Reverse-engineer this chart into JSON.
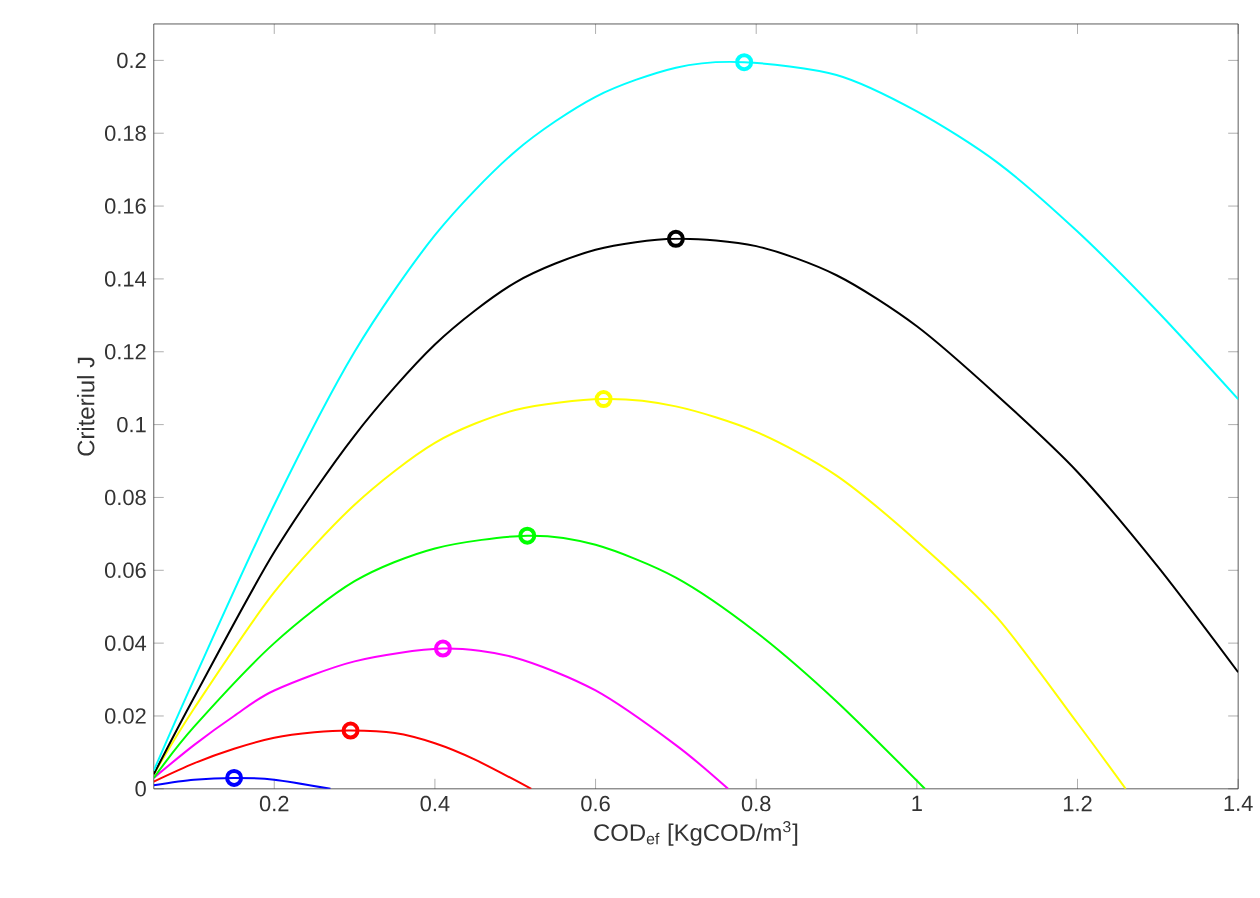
{
  "chart_data": {
    "type": "line",
    "xlabel": "COD$_{ef}$ [KgCOD/m$^{3}$]",
    "ylabel": "Criteriul J",
    "xlim": [
      0.05,
      1.4
    ],
    "ylim": [
      0,
      0.21
    ],
    "xticks": [
      0.2,
      0.4,
      0.6,
      0.8,
      1,
      1.2,
      1.4
    ],
    "yticks": [
      0,
      0.02,
      0.04,
      0.06,
      0.08,
      0.1,
      0.12,
      0.14,
      0.16,
      0.18,
      0.2
    ],
    "grid": false,
    "marker": "none",
    "line_style": "solid",
    "series": [
      {
        "color": "#0000ff",
        "x": [
          0.05,
          0.1,
          0.15,
          0.2,
          0.27
        ],
        "values": [
          0.001,
          0.0025,
          0.003,
          0.0025,
          0
        ]
      },
      {
        "color": "#ff0000",
        "x": [
          0.05,
          0.1,
          0.15,
          0.2,
          0.25,
          0.295,
          0.35,
          0.4,
          0.45,
          0.52
        ],
        "values": [
          0.002,
          0.007,
          0.011,
          0.014,
          0.0155,
          0.016,
          0.0153,
          0.0125,
          0.008,
          0
        ]
      },
      {
        "color": "#ff00ff",
        "x": [
          0.05,
          0.1,
          0.15,
          0.2,
          0.3,
          0.41,
          0.5,
          0.6,
          0.7,
          0.765
        ],
        "values": [
          0.003,
          0.012,
          0.02,
          0.027,
          0.035,
          0.0385,
          0.036,
          0.027,
          0.012,
          0
        ]
      },
      {
        "color": "#00ff00",
        "x": [
          0.05,
          0.1,
          0.2,
          0.3,
          0.4,
          0.515,
          0.6,
          0.7,
          0.8,
          0.9,
          1.01
        ],
        "values": [
          0.003,
          0.017,
          0.04,
          0.057,
          0.066,
          0.0695,
          0.067,
          0.058,
          0.043,
          0.024,
          0
        ]
      },
      {
        "color": "#ffff00",
        "x": [
          0.05,
          0.1,
          0.2,
          0.3,
          0.4,
          0.5,
          0.61,
          0.7,
          0.8,
          0.9,
          1.0,
          1.1,
          1.2,
          1.26
        ],
        "values": [
          0.004,
          0.022,
          0.054,
          0.078,
          0.095,
          0.104,
          0.107,
          0.105,
          0.098,
          0.086,
          0.068,
          0.047,
          0.018,
          0
        ]
      },
      {
        "color": "#000000",
        "x": [
          0.05,
          0.1,
          0.2,
          0.3,
          0.4,
          0.5,
          0.6,
          0.7,
          0.8,
          0.9,
          1.0,
          1.1,
          1.2,
          1.3,
          1.4
        ],
        "values": [
          0.004,
          0.025,
          0.065,
          0.097,
          0.122,
          0.139,
          0.148,
          0.151,
          0.149,
          0.141,
          0.127,
          0.108,
          0.087,
          0.061,
          0.032
        ]
      },
      {
        "color": "#00ffff",
        "x": [
          0.05,
          0.1,
          0.2,
          0.3,
          0.4,
          0.5,
          0.6,
          0.7,
          0.785,
          0.9,
          1.0,
          1.1,
          1.2,
          1.3,
          1.4
        ],
        "values": [
          0.005,
          0.03,
          0.078,
          0.12,
          0.152,
          0.175,
          0.19,
          0.198,
          0.1995,
          0.196,
          0.186,
          0.172,
          0.153,
          0.131,
          0.107
        ]
      },
      {
        "type": "scatter",
        "marker": "circle",
        "x": [
          0.15,
          0.295,
          0.41,
          0.515,
          0.61,
          0.7,
          0.785
        ],
        "values": [
          0.003,
          0.016,
          0.0385,
          0.0695,
          0.107,
          0.151,
          0.1995
        ],
        "colors": [
          "#0000ff",
          "#ff0000",
          "#ff00ff",
          "#00ff00",
          "#ffff00",
          "#000000",
          "#00ffff"
        ]
      }
    ]
  }
}
